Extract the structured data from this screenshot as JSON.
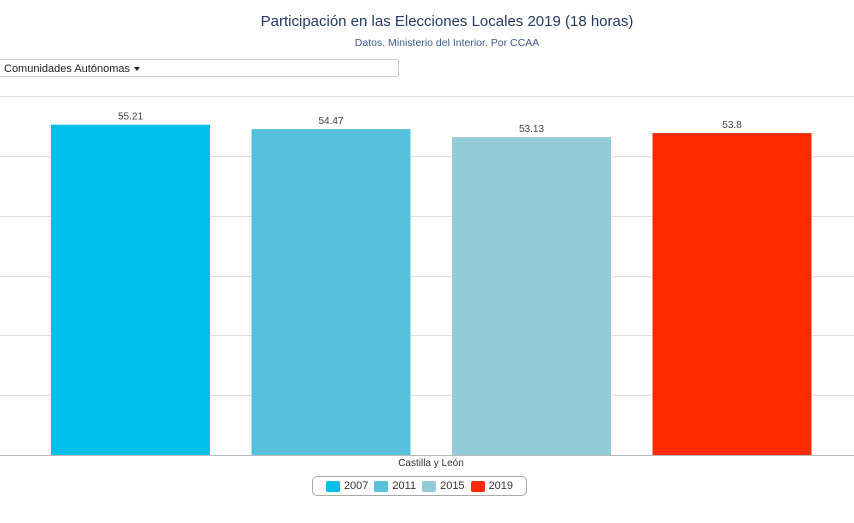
{
  "header": {
    "title": "Participación en las Elecciones Locales 2019 (18 horas)",
    "subtitle": "Datos. Ministerio del Interior. Por CCAA"
  },
  "selector": {
    "label": "Comunidades Autónomas"
  },
  "chart_data": {
    "type": "bar",
    "categories": [
      "Castilla y León"
    ],
    "series": [
      {
        "name": "2007",
        "values": [
          55.21
        ],
        "color": "#00bfe8"
      },
      {
        "name": "2011",
        "values": [
          54.47
        ],
        "color": "#57c0db"
      },
      {
        "name": "2015",
        "values": [
          53.13
        ],
        "color": "#94cbd9"
      },
      {
        "name": "2019",
        "values": [
          53.8
        ],
        "color": "#ff2a00"
      }
    ],
    "data_labels": [
      "55.21",
      "54.47",
      "53.13",
      "53.8"
    ],
    "xlabel": "Castilla y León",
    "ylabel": "",
    "ylim": [
      0,
      60
    ],
    "grid": true,
    "legend_position": "bottom-center"
  }
}
